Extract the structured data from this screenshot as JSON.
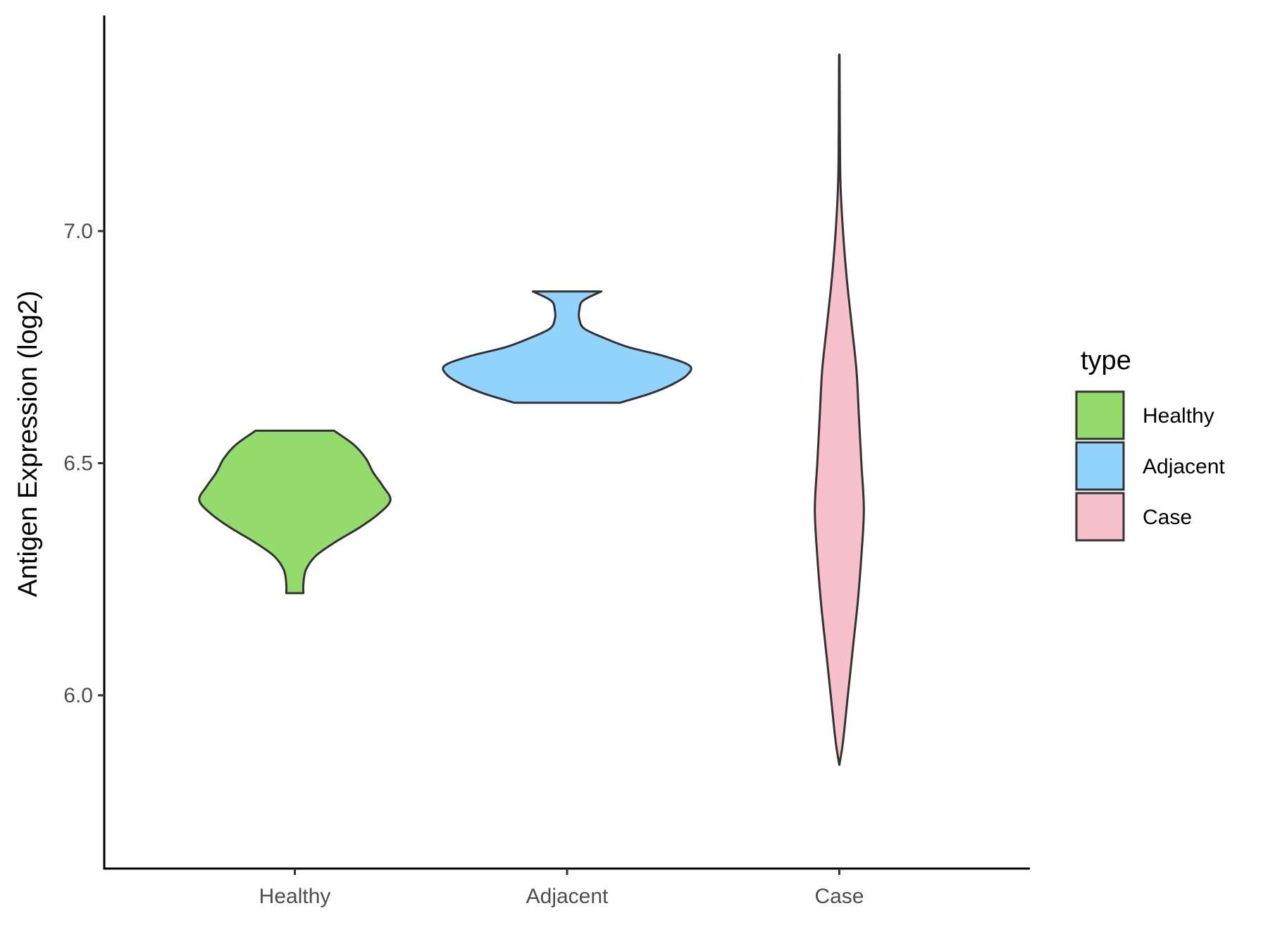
{
  "chart_data": {
    "type": "violin",
    "title": "",
    "xlabel": "",
    "ylabel": "Antigen Expression (log2)",
    "ylim": [
      5.8,
      7.52
    ],
    "yticks": [
      6.0,
      6.5,
      7.0
    ],
    "categories": [
      "Healthy",
      "Adjacent",
      "Case"
    ],
    "series": [
      {
        "name": "Healthy",
        "color": "#93DB6A",
        "min": 6.22,
        "max": 6.57,
        "density": [
          [
            6.22,
            0.07
          ],
          [
            6.24,
            0.07
          ],
          [
            6.27,
            0.09
          ],
          [
            6.3,
            0.17
          ],
          [
            6.33,
            0.33
          ],
          [
            6.36,
            0.52
          ],
          [
            6.39,
            0.68
          ],
          [
            6.42,
            0.78
          ],
          [
            6.45,
            0.72
          ],
          [
            6.48,
            0.64
          ],
          [
            6.51,
            0.58
          ],
          [
            6.54,
            0.48
          ],
          [
            6.57,
            0.32
          ]
        ]
      },
      {
        "name": "Adjacent",
        "color": "#92D3FE",
        "min": 6.63,
        "max": 6.87,
        "density": [
          [
            6.63,
            0.43
          ],
          [
            6.65,
            0.68
          ],
          [
            6.67,
            0.86
          ],
          [
            6.69,
            0.98
          ],
          [
            6.71,
            1.0
          ],
          [
            6.73,
            0.8
          ],
          [
            6.75,
            0.5
          ],
          [
            6.77,
            0.3
          ],
          [
            6.79,
            0.14
          ],
          [
            6.81,
            0.1
          ],
          [
            6.83,
            0.1
          ],
          [
            6.85,
            0.13
          ],
          [
            6.87,
            0.28
          ]
        ]
      },
      {
        "name": "Case",
        "color": "#F7C0CB",
        "min": 5.85,
        "max": 7.38,
        "density": [
          [
            5.85,
            0.0
          ],
          [
            5.9,
            0.03
          ],
          [
            6.0,
            0.07
          ],
          [
            6.1,
            0.11
          ],
          [
            6.2,
            0.15
          ],
          [
            6.3,
            0.18
          ],
          [
            6.4,
            0.2
          ],
          [
            6.5,
            0.18
          ],
          [
            6.6,
            0.16
          ],
          [
            6.7,
            0.14
          ],
          [
            6.8,
            0.1
          ],
          [
            6.9,
            0.06
          ],
          [
            7.0,
            0.03
          ],
          [
            7.1,
            0.01
          ],
          [
            7.2,
            0.005
          ],
          [
            7.3,
            0.003
          ],
          [
            7.38,
            0.002
          ]
        ]
      }
    ],
    "legend": {
      "title": "type",
      "position": "right",
      "entries": [
        "Healthy",
        "Adjacent",
        "Case"
      ]
    },
    "grid": false
  }
}
